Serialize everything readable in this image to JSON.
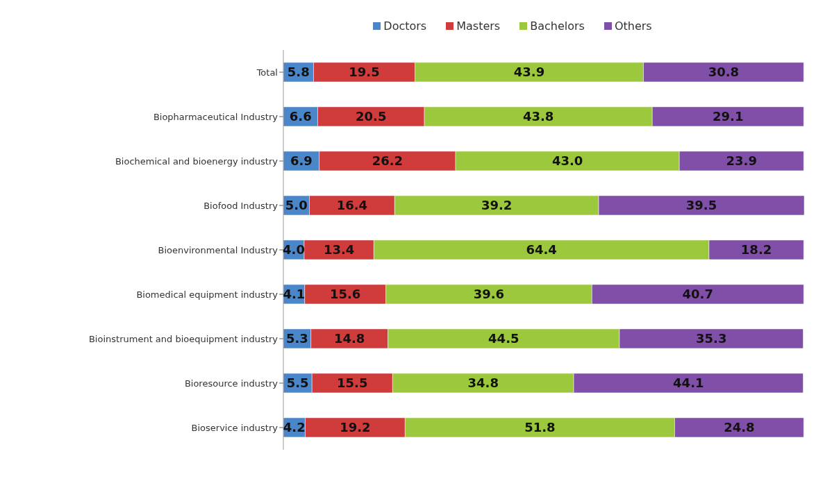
{
  "chart_data": {
    "type": "bar",
    "orientation": "horizontal",
    "stacked": true,
    "legend": "top",
    "categories": [
      "Total",
      "Biopharmaceutical Industry",
      "Biochemical and bioenergy industry",
      "Biofood Industry",
      "Bioenvironmental Industry",
      "Biomedical equipment industry",
      "Bioinstrument and bioequipment industry",
      "Bioresource industry",
      "Bioservice industry"
    ],
    "series": [
      {
        "name": "Doctors",
        "color": "#4a86c8",
        "values": [
          5.8,
          6.6,
          6.9,
          5.0,
          4.0,
          4.1,
          5.3,
          5.5,
          4.2
        ],
        "value_labels": [
          "5.8",
          "6.6",
          "6.9",
          "5.0",
          "4.0",
          "4.1",
          "5.3",
          "5.5",
          "4.2"
        ]
      },
      {
        "name": "Masters",
        "color": "#d03c3c",
        "values": [
          19.5,
          20.5,
          26.2,
          16.4,
          13.4,
          15.6,
          14.8,
          15.5,
          19.2
        ],
        "value_labels": [
          "19.5",
          "20.5",
          "26.2",
          "16.4",
          "13.4",
          "15.6",
          "14.8",
          "15.5",
          "19.2"
        ]
      },
      {
        "name": "Bachelors",
        "color": "#9bc83c",
        "values": [
          43.9,
          43.8,
          43.0,
          39.2,
          64.4,
          39.6,
          44.5,
          34.8,
          51.8
        ],
        "value_labels": [
          "43.9",
          "43.8",
          "43.0",
          "39.2",
          "64.4",
          "39.6",
          "44.5",
          "34.8",
          "51.8"
        ]
      },
      {
        "name": "Others",
        "color": "#8050a8",
        "values": [
          30.8,
          29.1,
          23.9,
          39.5,
          18.2,
          40.7,
          35.3,
          44.1,
          24.8
        ],
        "value_labels": [
          "30.8",
          "29.1",
          "23.9",
          "39.5",
          "18.2",
          "40.7",
          "35.3",
          "44.1",
          "24.8"
        ]
      }
    ]
  }
}
